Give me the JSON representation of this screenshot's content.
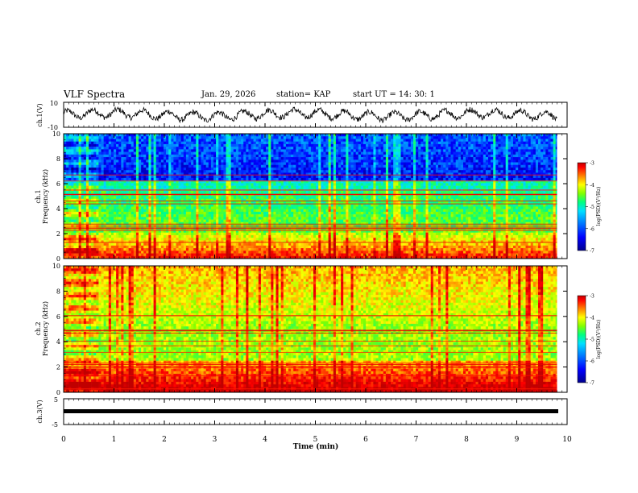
{
  "header": {
    "title": "VLF Spectra",
    "date": "Jan. 29, 2026",
    "station": "station= KAP",
    "start": "start  UT =   14: 30: 1"
  },
  "colors": {
    "colormap": [
      "#00008c",
      "#0000ff",
      "#0080ff",
      "#00e0ff",
      "#00ff80",
      "#80ff00",
      "#ffff00",
      "#ff8000",
      "#ff0000",
      "#c00000"
    ]
  },
  "chart_data": [
    {
      "type": "line",
      "id": "ch1-waveform",
      "ylabel": "ch.1(V)",
      "ylim": [
        -10,
        10
      ],
      "yticklabels": [
        "10",
        "-10"
      ],
      "xlim": [
        0,
        10
      ],
      "note": "oscillating waveform roughly between -6 and 6 V, period about 0.5 min"
    },
    {
      "type": "heatmap",
      "id": "ch1-spectrogram",
      "ylabel": "Frequency (kHz)",
      "channel_label": "ch.1",
      "ylim": [
        0,
        10
      ],
      "yticks": [
        0,
        2,
        4,
        6,
        8,
        10
      ],
      "xlim": [
        0,
        10
      ],
      "data_end_min": 9.8,
      "colorbar": {
        "label": "log(PSD)(V²/Hz)",
        "range": [
          -7,
          -3
        ],
        "ticks": [
          -3,
          -4,
          -5,
          -6,
          -7
        ]
      }
    },
    {
      "type": "heatmap",
      "id": "ch2-spectrogram",
      "ylabel": "Frequency (kHz)",
      "channel_label": "ch.2",
      "ylim": [
        0,
        10
      ],
      "yticks": [
        0,
        2,
        4,
        6,
        8,
        10
      ],
      "xlim": [
        0,
        10
      ],
      "data_end_min": 9.8,
      "colorbar": {
        "label": "log(PSD)(V²/Hz)",
        "range": [
          -7,
          -3
        ],
        "ticks": [
          -3,
          -4,
          -5,
          -6,
          -7
        ]
      }
    },
    {
      "type": "line",
      "id": "ch3-waveform",
      "ylabel": "ch.3(V)",
      "ylim": [
        -5,
        5
      ],
      "yticklabels": [
        "5",
        "-5"
      ],
      "xlim": [
        0,
        10
      ],
      "note": "dense signal near -1 V"
    }
  ],
  "xaxis": {
    "label": "Time  (min)",
    "ticks": [
      0,
      1,
      2,
      3,
      4,
      5,
      6,
      7,
      8,
      9,
      10
    ]
  }
}
